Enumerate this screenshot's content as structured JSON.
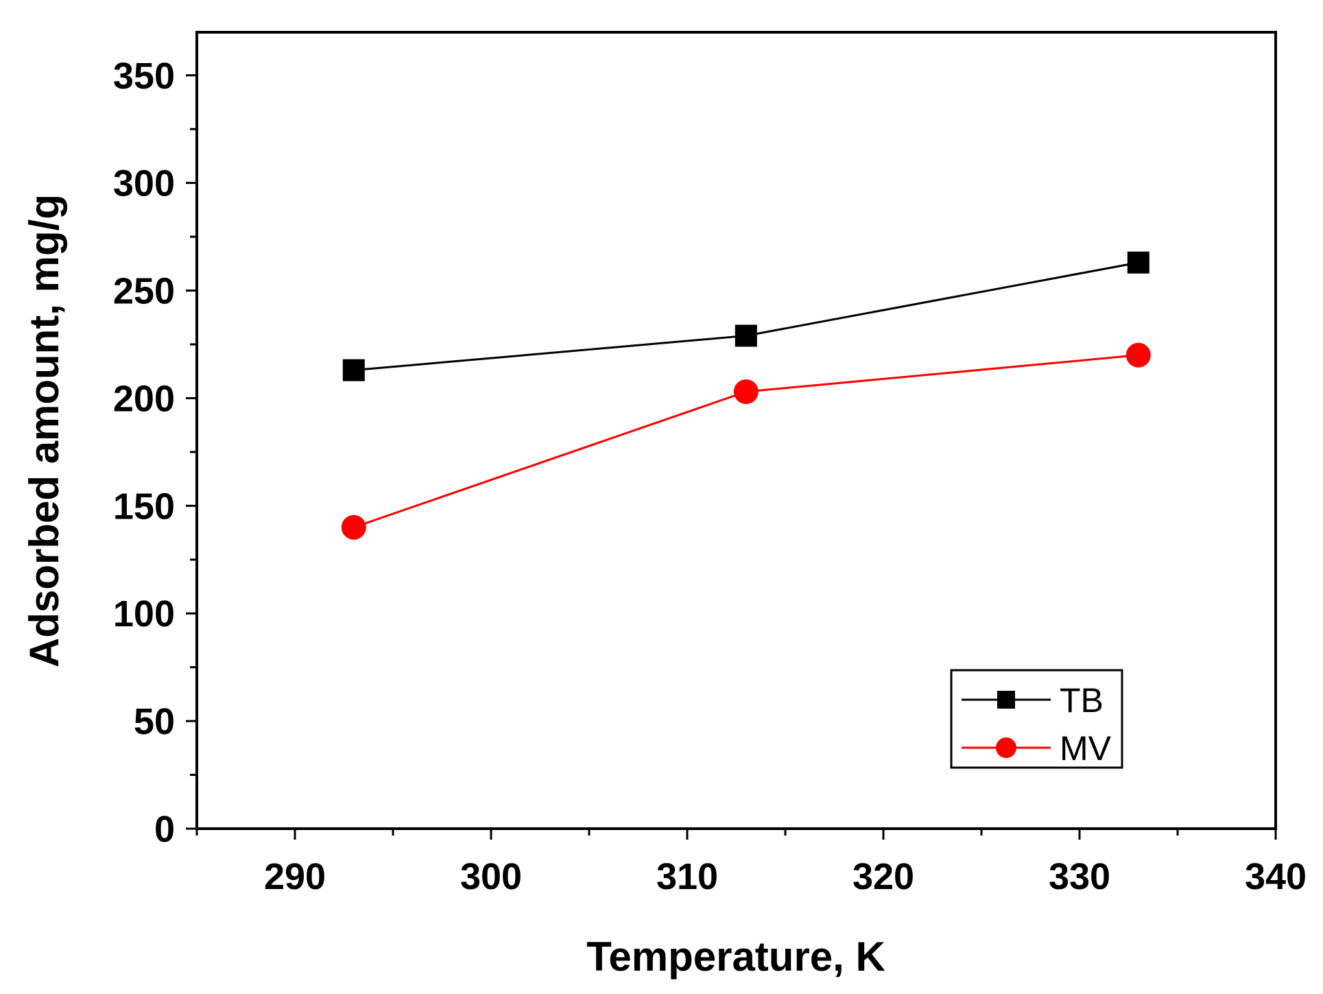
{
  "chart_data": {
    "type": "line",
    "title": "",
    "xlabel": "Temperature, K",
    "ylabel": "Adsorbed amount, mg/g",
    "xlim": [
      285,
      340
    ],
    "ylim": [
      0,
      370
    ],
    "x_ticks": [
      290,
      300,
      310,
      320,
      330,
      340
    ],
    "y_ticks": [
      0,
      50,
      100,
      150,
      200,
      250,
      300,
      350
    ],
    "grid": false,
    "legend_position": "bottom-right",
    "series": [
      {
        "name": "TB",
        "marker": "square",
        "color": "#000000",
        "x": [
          293,
          313,
          333
        ],
        "values": [
          213,
          229,
          263
        ]
      },
      {
        "name": "MV",
        "marker": "circle",
        "color": "#ff0000",
        "x": [
          293,
          313,
          333
        ],
        "values": [
          140,
          203,
          220
        ]
      }
    ]
  }
}
